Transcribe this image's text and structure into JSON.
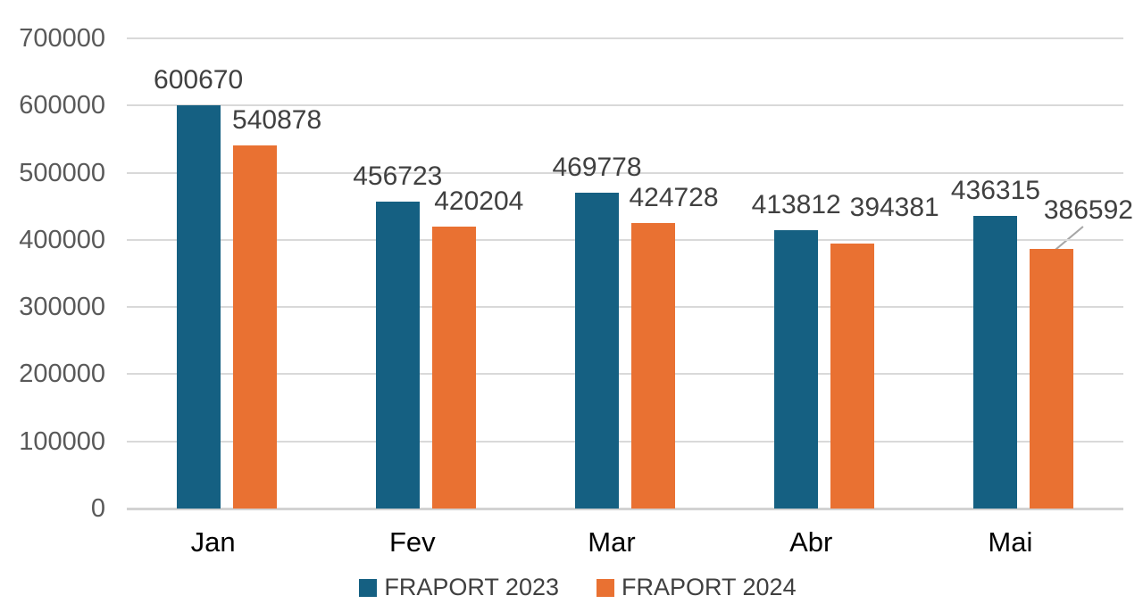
{
  "chart_data": {
    "type": "bar",
    "categories": [
      "Jan",
      "Fev",
      "Mar",
      "Abr",
      "Mai"
    ],
    "series": [
      {
        "name": "FRAPORT 2023",
        "color": "#156082",
        "values": [
          600670,
          456723,
          469778,
          413812,
          436315
        ]
      },
      {
        "name": "FRAPORT 2024",
        "color": "#E97132",
        "values": [
          540878,
          420204,
          424728,
          394381,
          386592
        ]
      }
    ],
    "xlabel": "",
    "ylabel": "",
    "ylim": [
      0,
      700000
    ],
    "ytick_step": 100000,
    "yticks": [
      0,
      100000,
      200000,
      300000,
      400000,
      500000,
      600000,
      700000
    ],
    "grid": "horizontal",
    "data_labels": true,
    "legend_position": "bottom",
    "callout": {
      "series_index": 1,
      "point_index": 4,
      "label": "386592",
      "note": "leader line from label down to bar top"
    }
  },
  "style": {
    "background": "#FFFFFF",
    "grid_color": "#D9D9D9",
    "axis_line_color": "#D2D2D2",
    "axis_text_color": "#595959",
    "data_label_color": "#404040",
    "category_label_color": "#000000",
    "legend_text_color": "#404040",
    "leader_line_color": "#A6A6A6"
  }
}
